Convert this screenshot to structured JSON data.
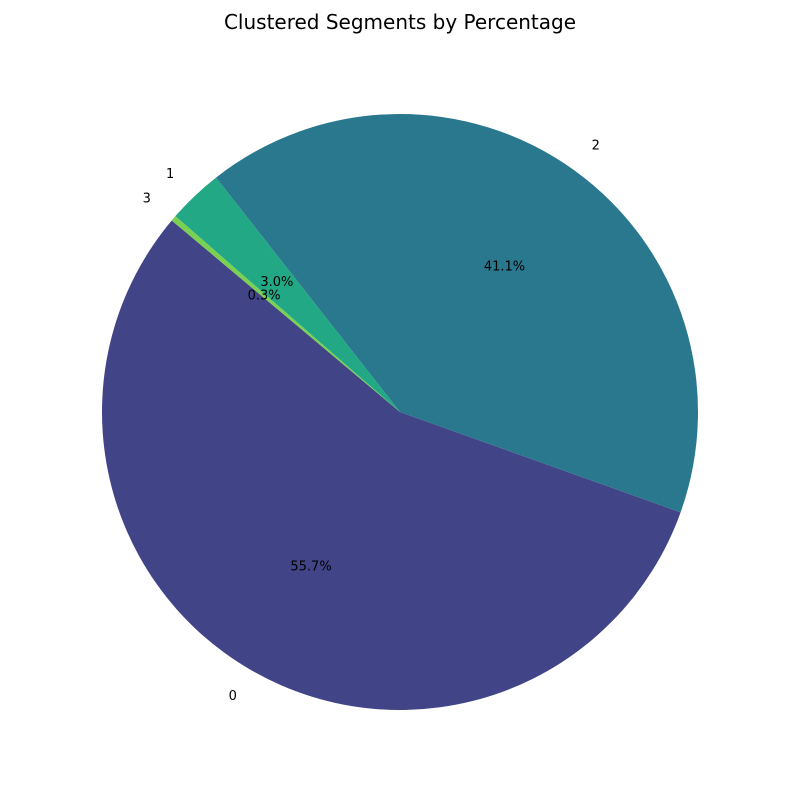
{
  "chart_data": {
    "type": "pie",
    "title": "Clustered Segments by Percentage",
    "start_angle_deg": 140,
    "direction": "counterclockwise",
    "slices": [
      {
        "label": "0",
        "value": 55.7,
        "pct_label": "55.7%",
        "color": "#414487"
      },
      {
        "label": "1",
        "value": 3.0,
        "pct_label": "3.0%",
        "color": "#22a884"
      },
      {
        "label": "2",
        "value": 41.1,
        "pct_label": "41.1%",
        "color": "#2a788e"
      },
      {
        "label": "3",
        "value": 0.3,
        "pct_label": "0.3%",
        "color": "#7ad151"
      }
    ],
    "draw_order": [
      "0",
      "2",
      "1",
      "3"
    ]
  }
}
